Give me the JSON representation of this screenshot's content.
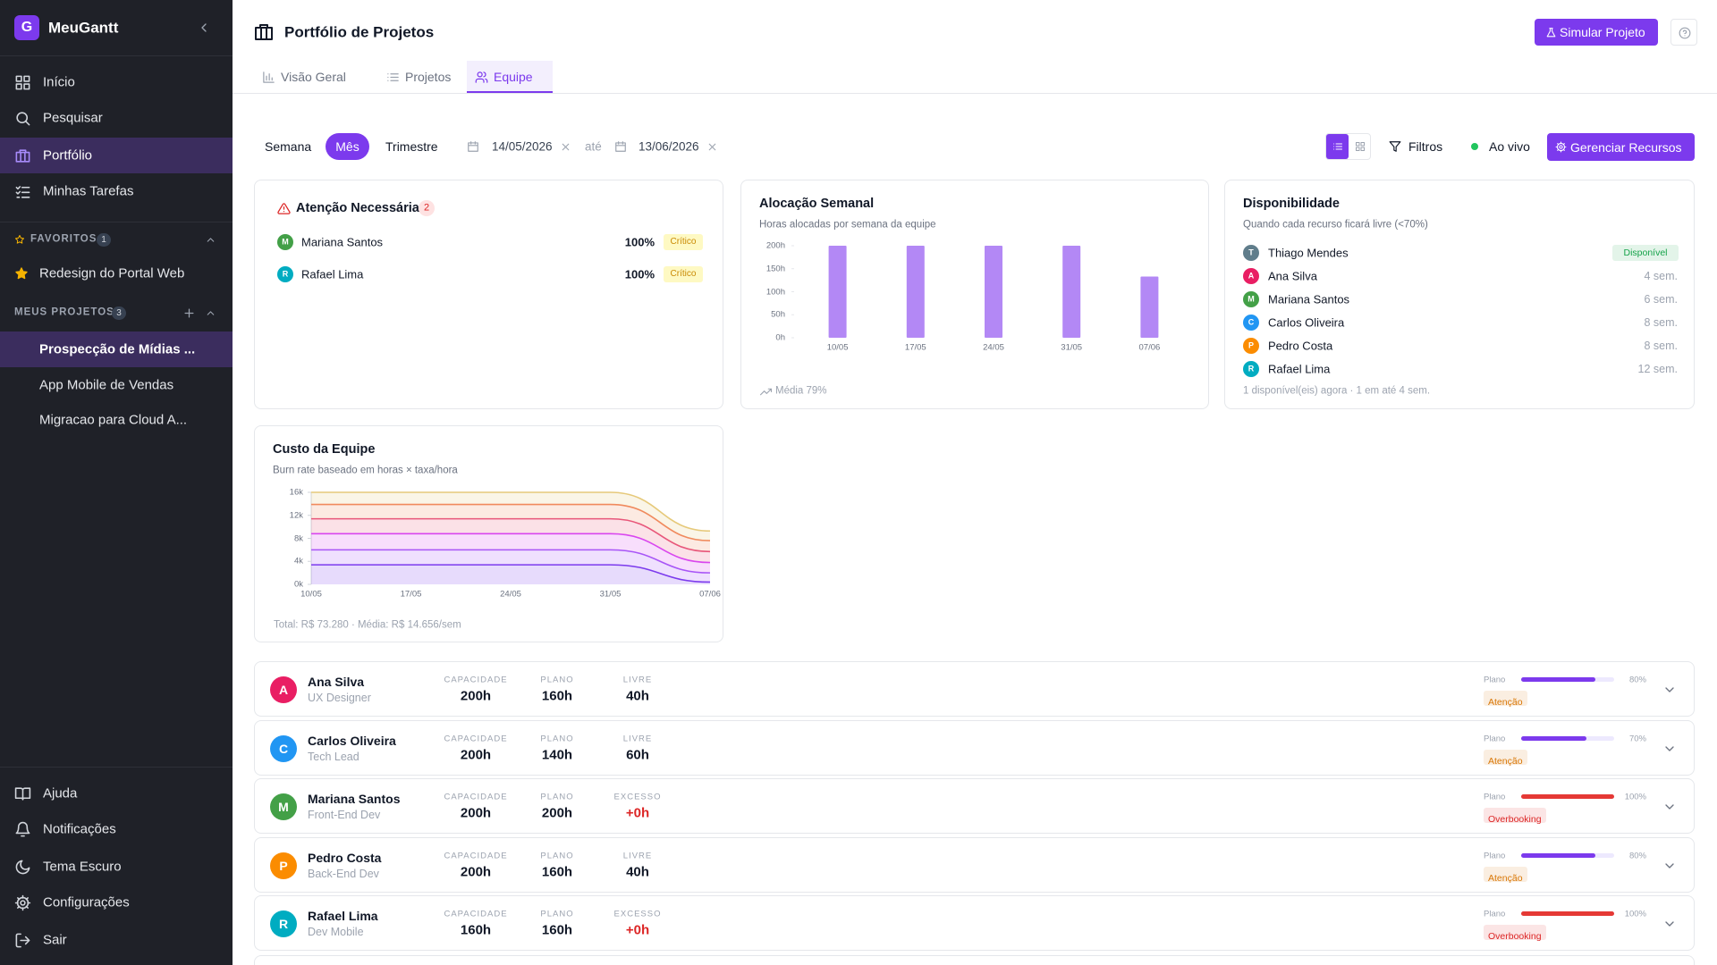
{
  "sidebar": {
    "brand_initial": "G",
    "brand": "MeuGantt",
    "nav": [
      "Início",
      "Pesquisar",
      "Portfólio",
      "Minhas Tarefas"
    ],
    "active_nav": 2,
    "favorites": {
      "title": "FAVORITOS",
      "count": "1",
      "items": [
        "Redesign do Portal Web"
      ]
    },
    "projects": {
      "title": "MEUS PROJETOS",
      "count": "3",
      "items": [
        "Prospecção de Mídias ...",
        "App Mobile de Vendas",
        "Migracao para Cloud A..."
      ],
      "active_project": 0
    },
    "footer": [
      "Ajuda",
      "Notificações",
      "Tema Escuro",
      "Configurações",
      "Sair"
    ]
  },
  "header": {
    "title": "Portfólio de Projetos",
    "tabs": [
      "Visão Geral",
      "Projetos",
      "Equipe"
    ],
    "active_tab": 2,
    "button": "Simular Projeto"
  },
  "toolbar": {
    "periods": [
      "Semana",
      "Mês",
      "Trimestre"
    ],
    "active_period": 1,
    "start_date": "14/05/2026",
    "date_separator": "até",
    "end_date": "13/06/2026",
    "filters": "Filtros",
    "live": "Ao vivo",
    "manage": "Gerenciar Recursos"
  },
  "attention": {
    "title": "Atenção Necessária",
    "count": "2",
    "items": [
      {
        "initial": "M",
        "name": "Mariana Santos",
        "value": "100%",
        "status": "Crítico",
        "color": "#43a047"
      },
      {
        "initial": "R",
        "name": "Rafael Lima",
        "value": "100%",
        "status": "Crítico",
        "color": "#00acc1"
      }
    ]
  },
  "chart_data": [
    {
      "type": "bar",
      "title": "Alocação Semanal",
      "subtitle": "Horas alocadas por semana da equipe",
      "categories": [
        "10/05",
        "17/05",
        "24/05",
        "31/05",
        "07/06"
      ],
      "values": [
        200,
        200,
        200,
        200,
        133
      ],
      "color": "#b388f5",
      "ylim": [
        0,
        200
      ],
      "yticks": [
        {
          "value": 0,
          "label": "0h"
        },
        {
          "value": 50,
          "label": "50h"
        },
        {
          "value": 100,
          "label": "100h"
        },
        {
          "value": 150,
          "label": "150h"
        },
        {
          "value": 200,
          "label": "200h"
        }
      ],
      "footnote": "Média 79%"
    },
    {
      "type": "area",
      "stacked": true,
      "title": "Custo da Equipe",
      "subtitle": "Burn rate baseado em horas × taxa/hora",
      "categories": [
        "10/05",
        "17/05",
        "24/05",
        "31/05",
        "07/06"
      ],
      "series": [
        {
          "color": "#7c3aed",
          "values": [
            3400,
            3400,
            3400,
            3400,
            400
          ]
        },
        {
          "color": "#a855f7",
          "values": [
            2600,
            2600,
            2600,
            2600,
            1600
          ]
        },
        {
          "color": "#d946ef",
          "values": [
            2800,
            2800,
            2800,
            2800,
            1800
          ]
        },
        {
          "color": "#e8577a",
          "values": [
            2600,
            2600,
            2600,
            2600,
            1900
          ]
        },
        {
          "color": "#f08a5d",
          "values": [
            2500,
            2500,
            2500,
            2500,
            1900
          ]
        },
        {
          "color": "#e6c97a",
          "values": [
            2100,
            2100,
            2100,
            2100,
            1680
          ]
        }
      ],
      "ylim": [
        0,
        16000
      ],
      "yticks": [
        {
          "value": 0,
          "label": "0k"
        },
        {
          "value": 4000,
          "label": "4k"
        },
        {
          "value": 8000,
          "label": "8k"
        },
        {
          "value": 12000,
          "label": "12k"
        },
        {
          "value": 16000,
          "label": "16k"
        }
      ],
      "footnote": "Total: R$ 73.280 · Média: R$ 14.656/sem"
    }
  ],
  "availability": {
    "title": "Disponibilidade",
    "subtitle": "Quando cada recurso ficará livre (<70%)",
    "items": [
      {
        "initial": "T",
        "name": "Thiago Mendes",
        "status": "Disponível",
        "color": "#607d8b",
        "status_color": "#16a34a",
        "badge": true
      },
      {
        "initial": "A",
        "name": "Ana Silva",
        "status": "4 sem.",
        "color": "#e91e63",
        "status_color": "#9ca3af",
        "badge": false
      },
      {
        "initial": "M",
        "name": "Mariana Santos",
        "status": "6 sem.",
        "color": "#43a047",
        "status_color": "#9ca3af",
        "badge": false
      },
      {
        "initial": "C",
        "name": "Carlos Oliveira",
        "status": "8 sem.",
        "color": "#2196f3",
        "status_color": "#9ca3af",
        "badge": false
      },
      {
        "initial": "P",
        "name": "Pedro Costa",
        "status": "8 sem.",
        "color": "#fb8c00",
        "status_color": "#9ca3af",
        "badge": false
      },
      {
        "initial": "R",
        "name": "Rafael Lima",
        "status": "12 sem.",
        "color": "#00acc1",
        "status_color": "#9ca3af",
        "badge": false
      }
    ],
    "footer": "1 disponível(eis) agora · 1 em até 4 sem."
  },
  "resources": [
    {
      "initial": "A",
      "name": "Ana Silva",
      "role": "UX Designer",
      "color": "#e91e63",
      "labels": [
        "CAPACIDADE",
        "PLANO",
        "LIVRE"
      ],
      "values": [
        "200h",
        "160h",
        "40h"
      ],
      "third_color": "#111827",
      "bar_label": "Plano",
      "percent": 80,
      "percent_label": "80%",
      "bar_color": "#7c3aed",
      "status": "Atenção",
      "status_color": "#d97706"
    },
    {
      "initial": "C",
      "name": "Carlos Oliveira",
      "role": "Tech Lead",
      "color": "#2196f3",
      "labels": [
        "CAPACIDADE",
        "PLANO",
        "LIVRE"
      ],
      "values": [
        "200h",
        "140h",
        "60h"
      ],
      "third_color": "#111827",
      "bar_label": "Plano",
      "percent": 70,
      "percent_label": "70%",
      "bar_color": "#7c3aed",
      "status": "Atenção",
      "status_color": "#d97706"
    },
    {
      "initial": "M",
      "name": "Mariana Santos",
      "role": "Front-End Dev",
      "color": "#43a047",
      "labels": [
        "CAPACIDADE",
        "PLANO",
        "EXCESSO"
      ],
      "values": [
        "200h",
        "200h",
        "+0h"
      ],
      "third_color": "#dc2626",
      "bar_label": "Plano",
      "percent": 100,
      "percent_label": "100%",
      "bar_color": "#e53935",
      "status": "Overbooking",
      "status_color": "#dc2626"
    },
    {
      "initial": "P",
      "name": "Pedro Costa",
      "role": "Back-End Dev",
      "color": "#fb8c00",
      "labels": [
        "CAPACIDADE",
        "PLANO",
        "LIVRE"
      ],
      "values": [
        "200h",
        "160h",
        "40h"
      ],
      "third_color": "#111827",
      "bar_label": "Plano",
      "percent": 80,
      "percent_label": "80%",
      "bar_color": "#7c3aed",
      "status": "Atenção",
      "status_color": "#d97706"
    },
    {
      "initial": "R",
      "name": "Rafael Lima",
      "role": "Dev Mobile",
      "color": "#00acc1",
      "labels": [
        "CAPACIDADE",
        "PLANO",
        "EXCESSO"
      ],
      "values": [
        "160h",
        "160h",
        "+0h"
      ],
      "third_color": "#dc2626",
      "bar_label": "Plano",
      "percent": 100,
      "percent_label": "100%",
      "bar_color": "#e53935",
      "status": "Overbooking",
      "status_color": "#dc2626"
    }
  ]
}
